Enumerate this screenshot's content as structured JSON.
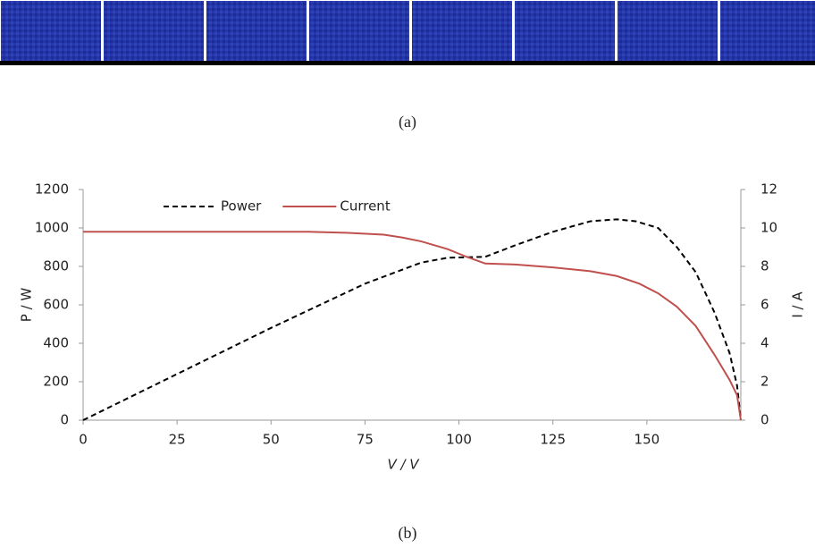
{
  "captions": {
    "top": "(a)",
    "bottom": "(b)"
  },
  "chart_data": {
    "type": "line",
    "x_label": "V / V",
    "y_label": "P / W",
    "y2_label": "I / A",
    "xlim": [
      0,
      175
    ],
    "xticks": [
      0,
      25,
      50,
      75,
      100,
      125,
      150
    ],
    "ylim": [
      0,
      1200
    ],
    "yticks": [
      0,
      200,
      400,
      600,
      800,
      1000,
      1200
    ],
    "y2lim": [
      0,
      12
    ],
    "y2ticks": [
      0,
      2,
      4,
      6,
      8,
      10,
      12
    ],
    "legend": "upper left",
    "series": [
      {
        "name": "Power",
        "color": "#000000",
        "dash": true,
        "x": [
          0,
          25,
          50,
          75,
          90,
          97,
          107,
          115,
          125,
          135,
          142,
          147,
          153,
          158,
          163,
          168,
          172,
          174,
          175
        ],
        "values": [
          0,
          240,
          480,
          710,
          820,
          845,
          850,
          910,
          980,
          1035,
          1045,
          1035,
          1000,
          900,
          770,
          560,
          350,
          180,
          0
        ]
      },
      {
        "name": "Current",
        "color": "#c0504d",
        "dash": false,
        "axis": "y2",
        "x": [
          0,
          60,
          70,
          80,
          85,
          90,
          97,
          102,
          107,
          115,
          125,
          135,
          142,
          148,
          153,
          158,
          163,
          168,
          172,
          174,
          175
        ],
        "values": [
          9.8,
          9.8,
          9.75,
          9.65,
          9.5,
          9.3,
          8.9,
          8.5,
          8.15,
          8.1,
          7.95,
          7.75,
          7.5,
          7.1,
          6.6,
          5.9,
          4.9,
          3.4,
          2.1,
          1.3,
          0
        ]
      }
    ]
  }
}
